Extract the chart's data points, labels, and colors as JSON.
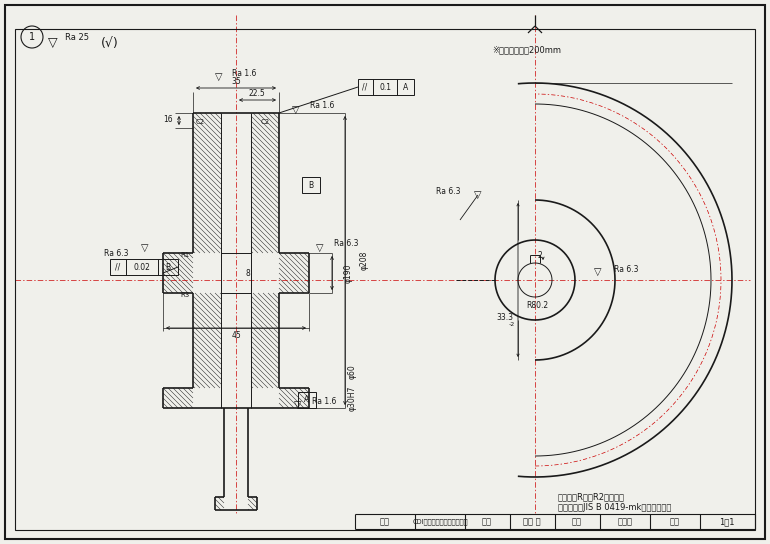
{
  "bg_color": "#f0f0eb",
  "line_color": "#1a1a1a",
  "red_line_color": "#cc0000",
  "hatch_color": "#333333",
  "title_block": {
    "school": "CDIキャリアスクール石巻校",
    "name": "椎出 愛",
    "drawing_name": "平歯車",
    "scale": "1：1"
  },
  "notes": [
    "指示なきR部はR2とする。",
    "普通公差はJIS B 0419-mkを適用する。"
  ],
  "ref_note": "※基準円直径：200mm"
}
